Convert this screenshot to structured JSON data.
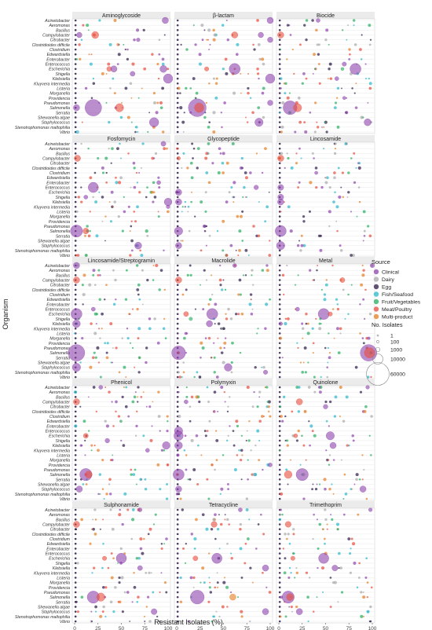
{
  "chart_data": {
    "type": "scatter",
    "xlabel": "Resistant Isolates (%)",
    "ylabel": "Organism",
    "x_ticks": [
      0,
      25,
      50,
      75,
      100
    ],
    "xlim": [
      0,
      100
    ],
    "organisms": [
      "Acinetobacter",
      "Aeromonas",
      "Bacillus",
      "Campylobacter",
      "Citrobacter",
      "Clostridioides difficile",
      "Clostridium",
      "Edwardsiella",
      "Enterobacter",
      "Enterococcus",
      "Escherichia",
      "Shigella",
      "Klebsiella",
      "Kluyvera intermedia",
      "Listeria",
      "Morganella",
      "Providencia",
      "Pseudomonas",
      "Salmonella",
      "Serratia",
      "Shewanella algae",
      "Staphylococcus",
      "Stenotrophomonas maltophilia",
      "Vibrio"
    ],
    "panels": [
      "Aminoglycoside",
      "β-lactam",
      "Biocide",
      "Fosfomycin",
      "Glycopeptide",
      "Lincosamide",
      "Lincosamide/Streptogramin",
      "Macrolide",
      "Metal",
      "Phenicol",
      "Polymyxin",
      "Quinolone",
      "Sulphonamide",
      "Tetracycline",
      "Trimethoprim"
    ],
    "legend": {
      "source_title": "Source",
      "sources": [
        {
          "name": "Clinical",
          "color": "#8e44ad"
        },
        {
          "name": "Dairy",
          "color": "#a9a9a9"
        },
        {
          "name": "Egg",
          "color": "#2e1a47"
        },
        {
          "name": "Fish/Seafood",
          "color": "#2ab7ca"
        },
        {
          "name": "Fruit/Vegetables",
          "color": "#27ae60"
        },
        {
          "name": "Meat/Poultry",
          "color": "#e74c3c"
        },
        {
          "name": "Multi-product",
          "color": "#e67e22"
        }
      ],
      "size_title": "No. Isolates",
      "sizes": [
        1,
        100,
        1000,
        10000,
        60000
      ]
    },
    "points": [
      {
        "panel": 0,
        "org": 0,
        "x": 97,
        "src": 0,
        "n": 3000
      },
      {
        "panel": 0,
        "org": 3,
        "x": 22,
        "src": 5,
        "n": 4000
      },
      {
        "panel": 0,
        "org": 3,
        "x": 5,
        "src": 0,
        "n": 2000
      },
      {
        "panel": 0,
        "org": 4,
        "x": 68,
        "src": 0,
        "n": 600
      },
      {
        "panel": 0,
        "org": 10,
        "x": 37,
        "src": 5,
        "n": 1500
      },
      {
        "panel": 0,
        "org": 10,
        "x": 42,
        "src": 0,
        "n": 3000
      },
      {
        "panel": 0,
        "org": 10,
        "x": 95,
        "src": 0,
        "n": 4000
      },
      {
        "panel": 0,
        "org": 11,
        "x": 62,
        "src": 0,
        "n": 1500
      },
      {
        "panel": 0,
        "org": 12,
        "x": 100,
        "src": 0,
        "n": 8000
      },
      {
        "panel": 0,
        "org": 18,
        "x": 20,
        "src": 0,
        "n": 30000
      },
      {
        "panel": 0,
        "org": 18,
        "x": 48,
        "src": 5,
        "n": 6000
      },
      {
        "panel": 0,
        "org": 18,
        "x": 2,
        "src": 0,
        "n": 3000
      },
      {
        "panel": 0,
        "org": 21,
        "x": 85,
        "src": 0,
        "n": 8000
      },
      {
        "panel": 0,
        "org": 23,
        "x": 3,
        "src": 3,
        "n": 300
      },
      {
        "panel": 1,
        "org": 0,
        "x": 100,
        "src": 0,
        "n": 3000
      },
      {
        "panel": 1,
        "org": 3,
        "x": 62,
        "src": 5,
        "n": 3000
      },
      {
        "panel": 1,
        "org": 3,
        "x": 90,
        "src": 0,
        "n": 2000
      },
      {
        "panel": 1,
        "org": 4,
        "x": 100,
        "src": 0,
        "n": 2000
      },
      {
        "panel": 1,
        "org": 10,
        "x": 32,
        "src": 5,
        "n": 1000
      },
      {
        "panel": 1,
        "org": 10,
        "x": 62,
        "src": 0,
        "n": 12000
      },
      {
        "panel": 1,
        "org": 12,
        "x": 100,
        "src": 0,
        "n": 8000
      },
      {
        "panel": 1,
        "org": 18,
        "x": 22,
        "src": 0,
        "n": 35000
      },
      {
        "panel": 1,
        "org": 18,
        "x": 24,
        "src": 5,
        "n": 8000
      },
      {
        "panel": 1,
        "org": 21,
        "x": 88,
        "src": 0,
        "n": 6000
      },
      {
        "panel": 1,
        "org": 17,
        "x": 100,
        "src": 0,
        "n": 2000
      },
      {
        "panel": 2,
        "org": 0,
        "x": 42,
        "src": 0,
        "n": 800
      },
      {
        "panel": 2,
        "org": 3,
        "x": 2,
        "src": 5,
        "n": 3000
      },
      {
        "panel": 2,
        "org": 9,
        "x": 70,
        "src": 0,
        "n": 1000
      },
      {
        "panel": 2,
        "org": 10,
        "x": 82,
        "src": 0,
        "n": 12000
      },
      {
        "panel": 2,
        "org": 10,
        "x": 68,
        "src": 4,
        "n": 300
      },
      {
        "panel": 2,
        "org": 12,
        "x": 62,
        "src": 0,
        "n": 800
      },
      {
        "panel": 2,
        "org": 18,
        "x": 12,
        "src": 0,
        "n": 20000
      },
      {
        "panel": 2,
        "org": 18,
        "x": 20,
        "src": 5,
        "n": 6000
      },
      {
        "panel": 2,
        "org": 21,
        "x": 95,
        "src": 0,
        "n": 4000
      },
      {
        "panel": 2,
        "org": 16,
        "x": 70,
        "src": 0,
        "n": 400
      },
      {
        "panel": 3,
        "org": 0,
        "x": 95,
        "src": 0,
        "n": 1500
      },
      {
        "panel": 3,
        "org": 3,
        "x": 3,
        "src": 5,
        "n": 3000
      },
      {
        "panel": 3,
        "org": 9,
        "x": 20,
        "src": 0,
        "n": 10000
      },
      {
        "panel": 3,
        "org": 11,
        "x": 12,
        "src": 0,
        "n": 800
      },
      {
        "panel": 3,
        "org": 12,
        "x": 100,
        "src": 0,
        "n": 5000
      },
      {
        "panel": 3,
        "org": 13,
        "x": 100,
        "src": 0,
        "n": 600
      },
      {
        "panel": 3,
        "org": 18,
        "x": 2,
        "src": 0,
        "n": 15000
      },
      {
        "panel": 3,
        "org": 18,
        "x": 12,
        "src": 5,
        "n": 2500
      },
      {
        "panel": 3,
        "org": 21,
        "x": 68,
        "src": 0,
        "n": 4000
      },
      {
        "panel": 3,
        "org": 8,
        "x": 90,
        "src": 0,
        "n": 800
      },
      {
        "panel": 4,
        "org": 9,
        "x": 85,
        "src": 0,
        "n": 1200
      },
      {
        "panel": 4,
        "org": 10,
        "x": 2,
        "src": 0,
        "n": 3000
      },
      {
        "panel": 4,
        "org": 12,
        "x": 2,
        "src": 0,
        "n": 3000
      },
      {
        "panel": 4,
        "org": 18,
        "x": 2,
        "src": 0,
        "n": 6000
      },
      {
        "panel": 4,
        "org": 21,
        "x": 2,
        "src": 0,
        "n": 3000
      },
      {
        "panel": 4,
        "org": 3,
        "x": 2,
        "src": 5,
        "n": 600
      },
      {
        "panel": 5,
        "org": 3,
        "x": 2,
        "src": 5,
        "n": 3000
      },
      {
        "panel": 5,
        "org": 9,
        "x": 2,
        "src": 0,
        "n": 2500
      },
      {
        "panel": 5,
        "org": 11,
        "x": 2,
        "src": 0,
        "n": 2500
      },
      {
        "panel": 5,
        "org": 12,
        "x": 2,
        "src": 0,
        "n": 3000
      },
      {
        "panel": 5,
        "org": 18,
        "x": 2,
        "src": 0,
        "n": 12000
      },
      {
        "panel": 5,
        "org": 21,
        "x": 2,
        "src": 0,
        "n": 6000
      },
      {
        "panel": 5,
        "org": 6,
        "x": 40,
        "src": 0,
        "n": 400
      },
      {
        "panel": 6,
        "org": 0,
        "x": 2,
        "src": 0,
        "n": 3000
      },
      {
        "panel": 6,
        "org": 3,
        "x": 2,
        "src": 5,
        "n": 3000
      },
      {
        "panel": 6,
        "org": 9,
        "x": 20,
        "src": 0,
        "n": 800
      },
      {
        "panel": 6,
        "org": 10,
        "x": 2,
        "src": 0,
        "n": 12000
      },
      {
        "panel": 6,
        "org": 12,
        "x": 2,
        "src": 0,
        "n": 5000
      },
      {
        "panel": 6,
        "org": 18,
        "x": 2,
        "src": 0,
        "n": 30000
      },
      {
        "panel": 6,
        "org": 21,
        "x": 2,
        "src": 0,
        "n": 6000
      },
      {
        "panel": 7,
        "org": 0,
        "x": 62,
        "src": 0,
        "n": 800
      },
      {
        "panel": 7,
        "org": 3,
        "x": 2,
        "src": 5,
        "n": 3000
      },
      {
        "panel": 7,
        "org": 10,
        "x": 38,
        "src": 0,
        "n": 12000
      },
      {
        "panel": 7,
        "org": 10,
        "x": 10,
        "src": 5,
        "n": 1500
      },
      {
        "panel": 7,
        "org": 11,
        "x": 15,
        "src": 4,
        "n": 500
      },
      {
        "panel": 7,
        "org": 12,
        "x": 35,
        "src": 0,
        "n": 3000
      },
      {
        "panel": 7,
        "org": 18,
        "x": 2,
        "src": 0,
        "n": 20000
      },
      {
        "panel": 7,
        "org": 21,
        "x": 55,
        "src": 0,
        "n": 5000
      },
      {
        "panel": 7,
        "org": 22,
        "x": 95,
        "src": 0,
        "n": 1000
      },
      {
        "panel": 8,
        "org": 0,
        "x": 100,
        "src": 0,
        "n": 1000
      },
      {
        "panel": 8,
        "org": 3,
        "x": 68,
        "src": 5,
        "n": 1500
      },
      {
        "panel": 8,
        "org": 9,
        "x": 20,
        "src": 0,
        "n": 800
      },
      {
        "panel": 8,
        "org": 10,
        "x": 48,
        "src": 0,
        "n": 12000
      },
      {
        "panel": 8,
        "org": 10,
        "x": 55,
        "src": 5,
        "n": 1000
      },
      {
        "panel": 8,
        "org": 12,
        "x": 2,
        "src": 0,
        "n": 600
      },
      {
        "panel": 8,
        "org": 18,
        "x": 96,
        "src": 0,
        "n": 30000
      },
      {
        "panel": 8,
        "org": 18,
        "x": 97,
        "src": 5,
        "n": 10000
      },
      {
        "panel": 9,
        "org": 0,
        "x": 28,
        "src": 0,
        "n": 800
      },
      {
        "panel": 9,
        "org": 3,
        "x": 2,
        "src": 5,
        "n": 3000
      },
      {
        "panel": 9,
        "org": 10,
        "x": 12,
        "src": 5,
        "n": 1500
      },
      {
        "panel": 9,
        "org": 11,
        "x": 35,
        "src": 0,
        "n": 1200
      },
      {
        "panel": 9,
        "org": 12,
        "x": 98,
        "src": 0,
        "n": 5000
      },
      {
        "panel": 9,
        "org": 13,
        "x": 78,
        "src": 0,
        "n": 800
      },
      {
        "panel": 9,
        "org": 18,
        "x": 12,
        "src": 0,
        "n": 15000
      },
      {
        "panel": 9,
        "org": 18,
        "x": 15,
        "src": 5,
        "n": 4000
      },
      {
        "panel": 9,
        "org": 21,
        "x": 5,
        "src": 0,
        "n": 3000
      },
      {
        "panel": 10,
        "org": 9,
        "x": 2,
        "src": 0,
        "n": 6000
      },
      {
        "panel": 10,
        "org": 10,
        "x": 2,
        "src": 0,
        "n": 8000
      },
      {
        "panel": 10,
        "org": 12,
        "x": 2,
        "src": 0,
        "n": 5000
      },
      {
        "panel": 10,
        "org": 18,
        "x": 2,
        "src": 0,
        "n": 12000
      },
      {
        "panel": 10,
        "org": 21,
        "x": 2,
        "src": 0,
        "n": 3000
      },
      {
        "panel": 10,
        "org": 16,
        "x": 100,
        "src": 0,
        "n": 800
      },
      {
        "panel": 10,
        "org": 3,
        "x": 10,
        "src": 0,
        "n": 800
      },
      {
        "panel": 11,
        "org": 0,
        "x": 95,
        "src": 0,
        "n": 600
      },
      {
        "panel": 11,
        "org": 3,
        "x": 22,
        "src": 5,
        "n": 3000
      },
      {
        "panel": 11,
        "org": 4,
        "x": 50,
        "src": 0,
        "n": 1200
      },
      {
        "panel": 11,
        "org": 10,
        "x": 55,
        "src": 0,
        "n": 6000
      },
      {
        "panel": 11,
        "org": 10,
        "x": 18,
        "src": 5,
        "n": 800
      },
      {
        "panel": 11,
        "org": 12,
        "x": 58,
        "src": 0,
        "n": 3000
      },
      {
        "panel": 11,
        "org": 18,
        "x": 25,
        "src": 0,
        "n": 15000
      },
      {
        "panel": 11,
        "org": 18,
        "x": 10,
        "src": 5,
        "n": 5000
      },
      {
        "panel": 11,
        "org": 21,
        "x": 90,
        "src": 0,
        "n": 3000
      },
      {
        "panel": 12,
        "org": 0,
        "x": 70,
        "src": 0,
        "n": 800
      },
      {
        "panel": 12,
        "org": 3,
        "x": 2,
        "src": 5,
        "n": 3000
      },
      {
        "panel": 12,
        "org": 10,
        "x": 50,
        "src": 0,
        "n": 10000
      },
      {
        "panel": 12,
        "org": 10,
        "x": 32,
        "src": 5,
        "n": 1000
      },
      {
        "panel": 12,
        "org": 12,
        "x": 70,
        "src": 0,
        "n": 1500
      },
      {
        "panel": 12,
        "org": 18,
        "x": 20,
        "src": 0,
        "n": 15000
      },
      {
        "panel": 12,
        "org": 18,
        "x": 28,
        "src": 5,
        "n": 6000
      },
      {
        "panel": 12,
        "org": 21,
        "x": 85,
        "src": 0,
        "n": 2500
      },
      {
        "panel": 13,
        "org": 0,
        "x": 68,
        "src": 0,
        "n": 800
      },
      {
        "panel": 13,
        "org": 3,
        "x": 40,
        "src": 5,
        "n": 2500
      },
      {
        "panel": 13,
        "org": 10,
        "x": 43,
        "src": 0,
        "n": 10000
      },
      {
        "panel": 13,
        "org": 10,
        "x": 20,
        "src": 5,
        "n": 1500
      },
      {
        "panel": 13,
        "org": 12,
        "x": 95,
        "src": 0,
        "n": 3000
      },
      {
        "panel": 13,
        "org": 18,
        "x": 22,
        "src": 0,
        "n": 20000
      },
      {
        "panel": 13,
        "org": 18,
        "x": 60,
        "src": 6,
        "n": 3000
      },
      {
        "panel": 13,
        "org": 21,
        "x": 95,
        "src": 0,
        "n": 3000
      },
      {
        "panel": 14,
        "org": 0,
        "x": 98,
        "src": 0,
        "n": 600
      },
      {
        "panel": 14,
        "org": 3,
        "x": 10,
        "src": 5,
        "n": 2500
      },
      {
        "panel": 14,
        "org": 10,
        "x": 48,
        "src": 0,
        "n": 10000
      },
      {
        "panel": 14,
        "org": 10,
        "x": 15,
        "src": 5,
        "n": 1000
      },
      {
        "panel": 14,
        "org": 12,
        "x": 60,
        "src": 0,
        "n": 2500
      },
      {
        "panel": 14,
        "org": 18,
        "x": 10,
        "src": 0,
        "n": 15000
      },
      {
        "panel": 14,
        "org": 18,
        "x": 12,
        "src": 5,
        "n": 4000
      },
      {
        "panel": 14,
        "org": 21,
        "x": 22,
        "src": 0,
        "n": 3000
      }
    ]
  }
}
